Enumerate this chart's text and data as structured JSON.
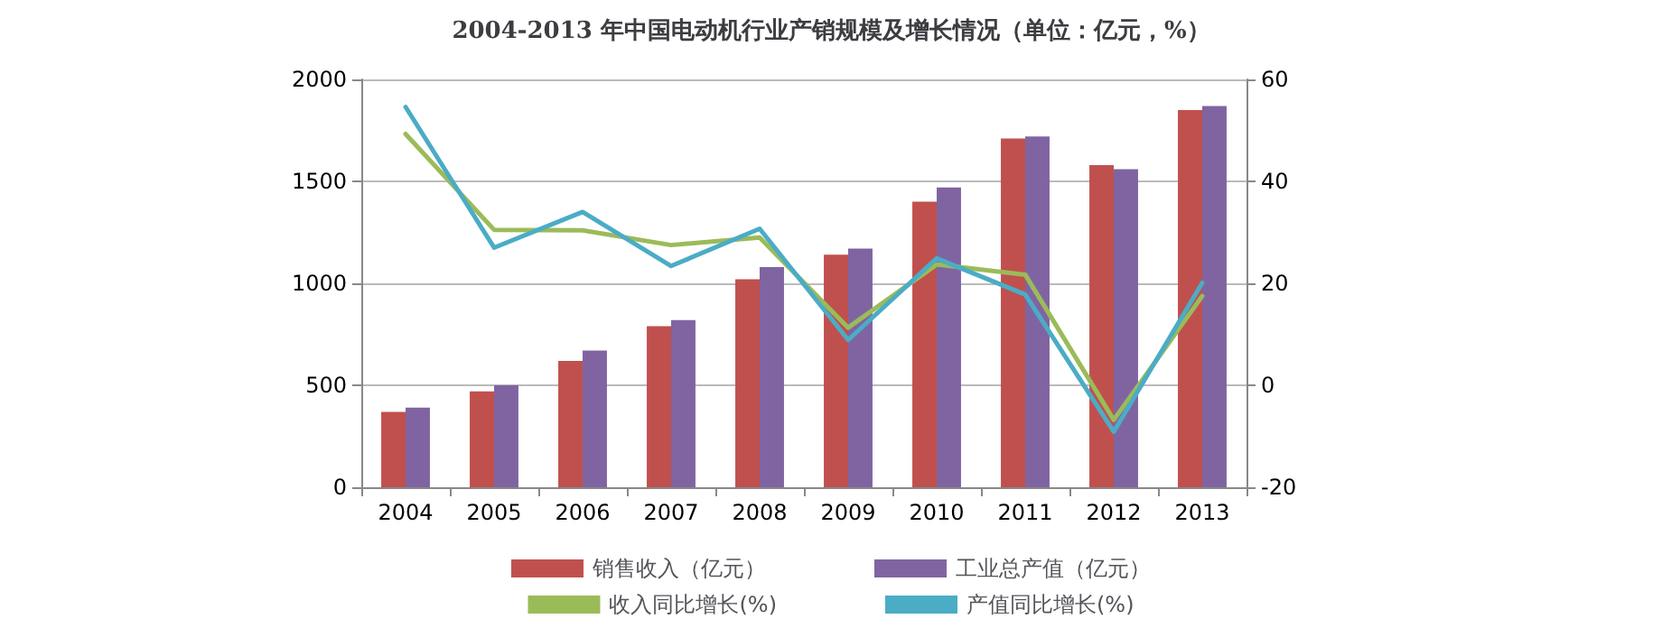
{
  "chart_data": {
    "type": "bar",
    "title": "2004-2013 年中国电动机行业产销规模及增长情况（单位：亿元，%）",
    "categories": [
      "2004",
      "2005",
      "2006",
      "2007",
      "2008",
      "2009",
      "2010",
      "2011",
      "2012",
      "2013"
    ],
    "series": [
      {
        "name": "销售收入（亿元）",
        "color": "#c0504d",
        "values": [
          370,
          470,
          620,
          790,
          1020,
          1140,
          1400,
          1710,
          1580,
          1850
        ]
      },
      {
        "name": "工业总产值（亿元）",
        "color": "#8064a2",
        "values": [
          390,
          500,
          670,
          820,
          1080,
          1170,
          1470,
          1720,
          1560,
          1870
        ]
      },
      {
        "name": "收入同比增长(%)",
        "type": "line",
        "axis": "y2",
        "color": "#9bbb59",
        "values": [
          49.3,
          30.5,
          30.4,
          27.5,
          29.0,
          11.3,
          23.7,
          21.7,
          -6.8,
          17.5
        ]
      },
      {
        "name": "产值同比增长(%)",
        "type": "line",
        "axis": "y2",
        "color": "#4bacc6",
        "values": [
          54.6,
          27.0,
          34.0,
          23.4,
          30.7,
          8.9,
          24.9,
          17.8,
          -9.1,
          20.1
        ]
      }
    ],
    "ylim": [
      0,
      2000
    ],
    "yticks": [
      0,
      500,
      1000,
      1500,
      2000
    ],
    "y2lim": [
      -20,
      60
    ],
    "y2ticks": [
      -20,
      0,
      20,
      40,
      60
    ],
    "grid": "y",
    "legend": "bottom",
    "marker": "none",
    "line_style": "solid"
  }
}
